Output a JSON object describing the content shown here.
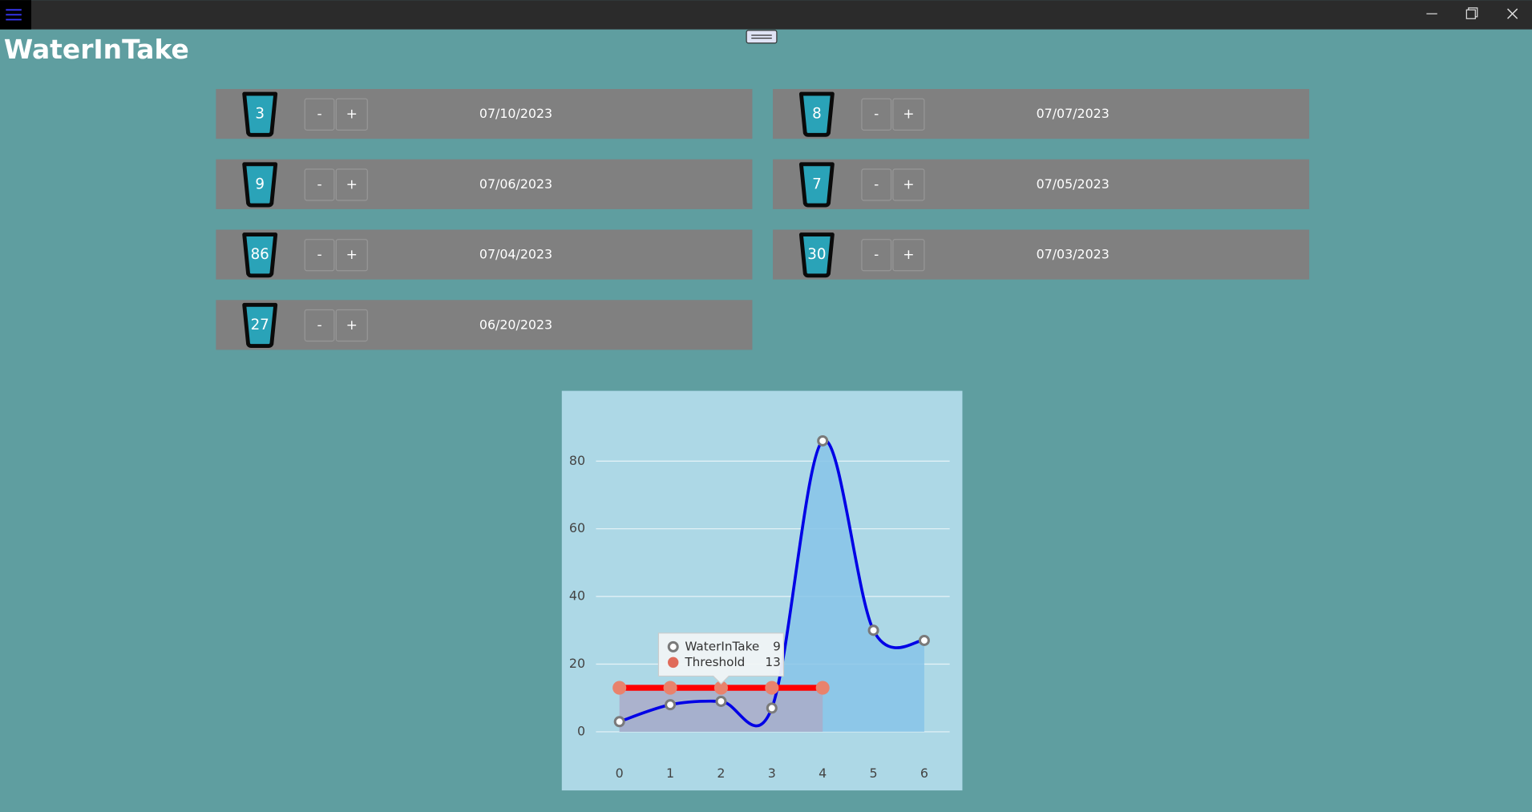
{
  "app": {
    "title": "WaterInTake",
    "entries": [
      {
        "count": 3,
        "date": "07/10/2023",
        "minus": "-",
        "plus": "+"
      },
      {
        "count": 8,
        "date": "07/07/2023",
        "minus": "-",
        "plus": "+"
      },
      {
        "count": 9,
        "date": "07/06/2023",
        "minus": "-",
        "plus": "+"
      },
      {
        "count": 7,
        "date": "07/05/2023",
        "minus": "-",
        "plus": "+"
      },
      {
        "count": 86,
        "date": "07/04/2023",
        "minus": "-",
        "plus": "+"
      },
      {
        "count": 30,
        "date": "07/03/2023",
        "minus": "-",
        "plus": "+"
      },
      {
        "count": 27,
        "date": "06/20/2023",
        "minus": "-",
        "plus": "+"
      }
    ]
  },
  "chart_data": {
    "type": "line",
    "x": [
      0,
      1,
      2,
      3,
      4,
      5,
      6
    ],
    "xlim": [
      -0.5,
      6.5
    ],
    "xticks": [
      0,
      1,
      2,
      3,
      4,
      5,
      6
    ],
    "ylim": [
      -5,
      95
    ],
    "yticks": [
      0,
      20,
      40,
      60,
      80
    ],
    "grid": true,
    "series": [
      {
        "name": "WaterInTake",
        "color": "#0000e6",
        "values": [
          3,
          8,
          9,
          7,
          86,
          30,
          27
        ]
      },
      {
        "name": "Threshold",
        "color": "#ff0000",
        "values": [
          13,
          13,
          13,
          13,
          13,
          null,
          null
        ]
      }
    ],
    "tooltip_x": 2
  }
}
